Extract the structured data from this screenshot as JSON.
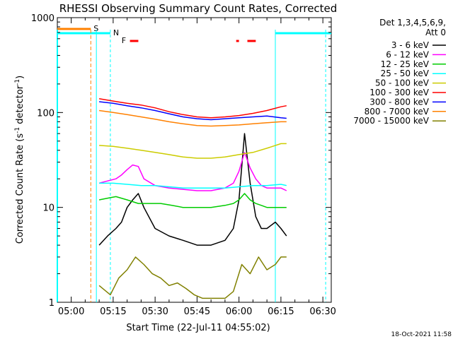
{
  "chart_data": {
    "type": "line",
    "title": "RHESSI Observing Summary Count Rates, Corrected",
    "xlabel": "Start Time (22-Jul-11 04:55:02)",
    "ylabel": "Corrected Count Rate (s⁻¹ detector⁻¹)",
    "ylabel_main": "Corrected Count Rate (s",
    "ylabel_sup1": "-1",
    "ylabel_mid": " detector",
    "ylabel_sup2": "-1",
    "ylabel_end": ")",
    "yscale": "log",
    "ylim": [
      1,
      1000
    ],
    "xlim": [
      "04:55:02",
      "06:33:00"
    ],
    "xticks": [
      "05:00",
      "05:15",
      "05:30",
      "05:45",
      "06:00",
      "06:15",
      "06:30"
    ],
    "yticks": [
      "1",
      "10",
      "100",
      "1000"
    ],
    "footer_date": "18-Oct-2021 11:58",
    "legend": {
      "header_line1": "Det 1,3,4,5,6,9,",
      "header_line2": "Att 0",
      "entries": [
        {
          "label": "3 - 6 keV",
          "color": "#000000"
        },
        {
          "label": "6 - 12 keV",
          "color": "#ff00ff"
        },
        {
          "label": "12 - 25 keV",
          "color": "#00cc00"
        },
        {
          "label": "25 - 50 keV",
          "color": "#00ffff"
        },
        {
          "label": "50 - 100 keV",
          "color": "#cccc00"
        },
        {
          "label": "100 - 300 keV",
          "color": "#ff0000"
        },
        {
          "label": "300 - 800 keV",
          "color": "#0000ff"
        },
        {
          "label": "800 - 7000 keV",
          "color": "#ff8000"
        },
        {
          "label": "7000 - 15000 keV",
          "color": "#808000"
        }
      ]
    },
    "flags": [
      {
        "label": "S",
        "color": "#ff8000"
      },
      {
        "label": "N",
        "color": "#00ffff"
      },
      {
        "label": "F",
        "color": "#ff0000"
      }
    ],
    "series": [
      {
        "name": "3 - 6 keV",
        "color": "#000000",
        "x": [
          "05:10",
          "05:13",
          "05:16",
          "05:18",
          "05:20",
          "05:22",
          "05:24",
          "05:26",
          "05:30",
          "05:35",
          "05:40",
          "05:45",
          "05:50",
          "05:55",
          "05:58",
          "06:00",
          "06:02",
          "06:04",
          "06:06",
          "06:08",
          "06:10",
          "06:13",
          "06:15",
          "06:17"
        ],
        "y": [
          4,
          5,
          6,
          7,
          10,
          12,
          14,
          10,
          6,
          5,
          4.5,
          4,
          4,
          4.5,
          6,
          12,
          60,
          18,
          8,
          6,
          6,
          7,
          6,
          5
        ]
      },
      {
        "name": "6 - 12 keV",
        "color": "#ff00ff",
        "x": [
          "05:10",
          "05:13",
          "05:16",
          "05:18",
          "05:20",
          "05:22",
          "05:24",
          "05:26",
          "05:30",
          "05:35",
          "05:40",
          "05:45",
          "05:50",
          "05:55",
          "05:58",
          "06:00",
          "06:02",
          "06:04",
          "06:06",
          "06:08",
          "06:10",
          "06:13",
          "06:15",
          "06:17"
        ],
        "y": [
          18,
          19,
          20,
          22,
          25,
          28,
          27,
          20,
          17,
          16,
          15.5,
          15,
          15,
          16,
          18,
          24,
          38,
          26,
          20,
          17,
          16,
          16,
          16,
          15
        ]
      },
      {
        "name": "12 - 25 keV",
        "color": "#00cc00",
        "x": [
          "05:10",
          "05:13",
          "05:16",
          "05:20",
          "05:24",
          "05:28",
          "05:32",
          "05:36",
          "05:40",
          "05:45",
          "05:50",
          "05:55",
          "05:58",
          "06:00",
          "06:02",
          "06:04",
          "06:06",
          "06:08",
          "06:10",
          "06:13",
          "06:15",
          "06:17"
        ],
        "y": [
          12,
          12.5,
          13,
          12,
          11,
          11,
          11,
          10.5,
          10,
          10,
          10,
          10.5,
          11,
          12,
          14,
          12,
          11,
          10.5,
          10,
          10,
          10,
          10
        ]
      },
      {
        "name": "25 - 50 keV",
        "color": "#00ffff",
        "x": [
          "05:10",
          "05:15",
          "05:20",
          "05:25",
          "05:30",
          "05:35",
          "05:40",
          "05:45",
          "05:50",
          "05:55",
          "06:00",
          "06:05",
          "06:10",
          "06:15",
          "06:17"
        ],
        "y": [
          18,
          18,
          17.5,
          17,
          17,
          16.5,
          16,
          16,
          16,
          16,
          16.5,
          17,
          17,
          17.5,
          17
        ]
      },
      {
        "name": "50 - 100 keV",
        "color": "#cccc00",
        "x": [
          "05:10",
          "05:15",
          "05:20",
          "05:25",
          "05:30",
          "05:35",
          "05:40",
          "05:45",
          "05:50",
          "05:55",
          "06:00",
          "06:05",
          "06:10",
          "06:15",
          "06:17"
        ],
        "y": [
          45,
          44,
          42,
          40,
          38,
          36,
          34,
          33,
          33,
          34,
          36,
          38,
          42,
          47,
          47
        ]
      },
      {
        "name": "100 - 300 keV",
        "color": "#ff0000",
        "x": [
          "05:10",
          "05:15",
          "05:20",
          "05:25",
          "05:30",
          "05:35",
          "05:40",
          "05:45",
          "05:50",
          "05:55",
          "06:00",
          "06:05",
          "06:10",
          "06:15",
          "06:17"
        ],
        "y": [
          140,
          132,
          125,
          120,
          112,
          102,
          95,
          90,
          88,
          90,
          93,
          98,
          105,
          115,
          118
        ]
      },
      {
        "name": "300 - 800 keV",
        "color": "#0000ff",
        "x": [
          "05:10",
          "05:15",
          "05:20",
          "05:25",
          "05:30",
          "05:35",
          "05:40",
          "05:45",
          "05:50",
          "05:55",
          "06:00",
          "06:05",
          "06:10",
          "06:15",
          "06:17"
        ],
        "y": [
          130,
          125,
          118,
          112,
          105,
          97,
          90,
          86,
          84,
          86,
          88,
          90,
          92,
          88,
          87
        ]
      },
      {
        "name": "800 - 7000 keV",
        "color": "#ff8000",
        "x": [
          "05:10",
          "05:15",
          "05:20",
          "05:25",
          "05:30",
          "05:35",
          "05:40",
          "05:45",
          "05:50",
          "05:55",
          "06:00",
          "06:05",
          "06:10",
          "06:15",
          "06:17"
        ],
        "y": [
          105,
          100,
          95,
          90,
          85,
          80,
          76,
          73,
          72,
          73,
          74,
          76,
          78,
          80,
          80
        ]
      },
      {
        "name": "7000 - 15000 keV",
        "color": "#808000",
        "x": [
          "05:10",
          "05:14",
          "05:17",
          "05:20",
          "05:23",
          "05:26",
          "05:29",
          "05:32",
          "05:35",
          "05:38",
          "05:41",
          "05:44",
          "05:47",
          "05:50",
          "05:55",
          "05:58",
          "06:01",
          "06:04",
          "06:07",
          "06:10",
          "06:13",
          "06:15",
          "06:17"
        ],
        "y": [
          1.5,
          1.2,
          1.8,
          2.2,
          3,
          2.5,
          2,
          1.8,
          1.5,
          1.6,
          1.4,
          1.2,
          1.1,
          1.1,
          1.1,
          1.3,
          2.5,
          2,
          3,
          2.2,
          2.5,
          3,
          3
        ]
      }
    ]
  }
}
